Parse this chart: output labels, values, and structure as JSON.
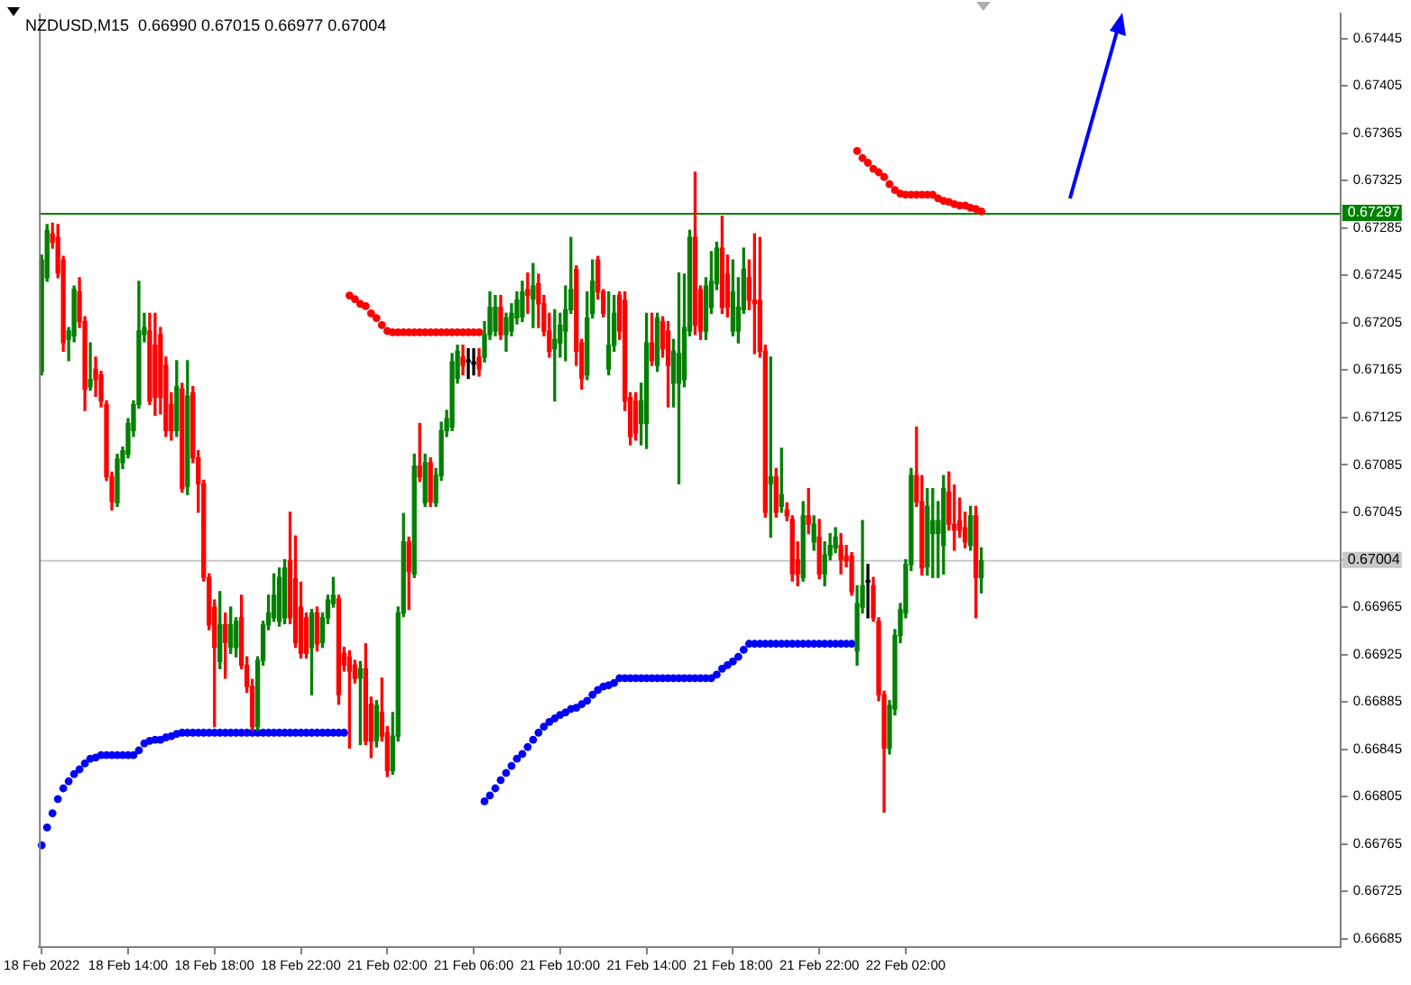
{
  "chart_data": {
    "type": "candlestick",
    "title": "NZDUSD,M15  0.66990 0.67015 0.66977 0.67004",
    "categories": [
      "18 Feb 2022",
      null,
      null,
      null,
      null,
      null,
      null,
      null,
      null,
      null,
      null,
      null,
      null,
      null,
      null,
      null,
      "18 Feb 14:00",
      null,
      null,
      null,
      null,
      null,
      null,
      null,
      null,
      null,
      null,
      null,
      null,
      null,
      null,
      null,
      "18 Feb 18:00",
      null,
      null,
      null,
      null,
      null,
      null,
      null,
      null,
      null,
      null,
      null,
      null,
      null,
      null,
      null,
      "18 Feb 22:00",
      null,
      null,
      null,
      null,
      null,
      null,
      null,
      null,
      null,
      null,
      null,
      null,
      null,
      null,
      null,
      "21 Feb 02:00",
      null,
      null,
      null,
      null,
      null,
      null,
      null,
      null,
      null,
      null,
      null,
      null,
      null,
      null,
      null,
      "21 Feb 06:00",
      null,
      null,
      null,
      null,
      null,
      null,
      null,
      null,
      null,
      null,
      null,
      null,
      null,
      null,
      null,
      "21 Feb 10:00",
      null,
      null,
      null,
      null,
      null,
      null,
      null,
      null,
      null,
      null,
      null,
      null,
      null,
      null,
      null,
      "21 Feb 14:00",
      null,
      null,
      null,
      null,
      null,
      null,
      null,
      null,
      null,
      null,
      null,
      null,
      null,
      null,
      null,
      "21 Feb 18:00",
      null,
      null,
      null,
      null,
      null,
      null,
      null,
      null,
      null,
      null,
      null,
      null,
      null,
      null,
      null,
      "21 Feb 22:00",
      null,
      null,
      null,
      null,
      null,
      null,
      null,
      null,
      null,
      null,
      null,
      null,
      null,
      null,
      null,
      "22 Feb 02:00",
      null,
      null,
      null,
      null,
      null,
      null,
      null,
      null,
      null,
      null,
      null,
      null,
      null,
      null,
      null,
      null,
      null,
      null,
      null,
      null,
      null,
      null,
      null,
      null,
      null,
      null,
      null,
      null,
      null,
      null,
      null,
      null,
      null,
      null,
      null,
      null,
      null,
      null,
      null,
      null,
      null,
      null,
      null,
      null,
      null,
      null,
      null,
      null,
      null,
      null,
      null,
      null,
      null,
      null,
      null,
      null,
      null,
      null,
      null,
      null,
      null,
      null,
      null,
      null,
      null,
      null,
      null,
      null,
      null,
      null,
      null,
      null,
      null,
      null,
      null,
      null,
      null,
      null,
      null,
      null
    ],
    "ylim": [
      0.66678,
      0.67466
    ],
    "yticks": [
      0.66685,
      0.66725,
      0.66765,
      0.66805,
      0.66845,
      0.66885,
      0.66925,
      0.66965,
      {
        "value": 0.67005,
        "label": null
      },
      0.67045,
      0.67085,
      0.67125,
      0.67165,
      0.67205,
      0.67245,
      0.67285,
      0.67325,
      0.67365,
      0.67405,
      0.67445
    ],
    "ohlc": [
      [
        0.67164,
        0.67262,
        0.67161,
        0.67258
      ],
      [
        0.67243,
        0.67288,
        0.6724,
        0.67283
      ],
      [
        0.6728,
        0.67289,
        0.67268,
        0.67273
      ],
      [
        0.67277,
        0.67288,
        0.67243,
        0.67247
      ],
      [
        0.67258,
        0.67261,
        0.67181,
        0.67188
      ],
      [
        0.67191,
        0.67201,
        0.67173,
        0.67198
      ],
      [
        0.67194,
        0.67236,
        0.67189,
        0.67233
      ],
      [
        0.67231,
        0.67243,
        0.67201,
        0.67206
      ],
      [
        0.67206,
        0.6721,
        0.67131,
        0.67149
      ],
      [
        0.67151,
        0.67188,
        0.67148,
        0.67157
      ],
      [
        0.67166,
        0.67176,
        0.67143,
        0.67157
      ],
      [
        0.67161,
        0.67164,
        0.67134,
        0.67139
      ],
      [
        0.67136,
        0.67139,
        0.67072,
        0.67075
      ],
      [
        0.67075,
        0.67079,
        0.67047,
        0.67054
      ],
      [
        0.67053,
        0.67094,
        0.6705,
        0.6709
      ],
      [
        0.67087,
        0.671,
        0.67082,
        0.67097
      ],
      [
        0.67094,
        0.67124,
        0.67091,
        0.6712
      ],
      [
        0.67114,
        0.67139,
        0.67109,
        0.67136
      ],
      [
        0.67136,
        0.6724,
        0.67133,
        0.67198
      ],
      [
        0.67195,
        0.67213,
        0.67189,
        0.67201
      ],
      [
        0.67198,
        0.67213,
        0.67136,
        0.67139
      ],
      [
        0.67186,
        0.67213,
        0.67127,
        0.67142
      ],
      [
        0.67195,
        0.67201,
        0.67128,
        0.67142
      ],
      [
        0.67169,
        0.67176,
        0.67109,
        0.67114
      ],
      [
        0.67136,
        0.67146,
        0.67106,
        0.67114
      ],
      [
        0.67114,
        0.67173,
        0.67109,
        0.67151
      ],
      [
        0.67149,
        0.67154,
        0.67062,
        0.67065
      ],
      [
        0.67067,
        0.67173,
        0.6706,
        0.67143
      ],
      [
        0.67146,
        0.67151,
        0.67087,
        0.67091
      ],
      [
        0.67091,
        0.67097,
        0.67045,
        0.67069
      ],
      [
        0.67069,
        0.67072,
        0.66987,
        0.6699
      ],
      [
        0.6699,
        0.66993,
        0.66946,
        0.6695
      ],
      [
        0.66965,
        0.66971,
        0.66864,
        0.66931
      ],
      [
        0.66919,
        0.66978,
        0.66913,
        0.6695
      ],
      [
        0.6695,
        0.6696,
        0.66905,
        0.66935
      ],
      [
        0.66931,
        0.66965,
        0.66926,
        0.6695
      ],
      [
        0.66931,
        0.66956,
        0.66923,
        0.66953
      ],
      [
        0.66956,
        0.66975,
        0.66913,
        0.66916
      ],
      [
        0.66916,
        0.66923,
        0.66893,
        0.66898
      ],
      [
        0.66898,
        0.66904,
        0.66861,
        0.66864
      ],
      [
        0.66864,
        0.66923,
        0.66861,
        0.6692
      ],
      [
        0.6692,
        0.66953,
        0.66916,
        0.6695
      ],
      [
        0.6695,
        0.66975,
        0.66946,
        0.6696
      ],
      [
        0.66956,
        0.66993,
        0.66953,
        0.66975
      ],
      [
        0.66953,
        0.66998,
        0.66949,
        0.6699
      ],
      [
        0.66956,
        0.67005,
        0.66951,
        0.66998
      ],
      [
        0.67004,
        0.67045,
        0.66951,
        0.66956
      ],
      [
        0.66989,
        0.67025,
        0.66931,
        0.66935
      ],
      [
        0.66965,
        0.66986,
        0.66922,
        0.66926
      ],
      [
        0.66956,
        0.6696,
        0.66922,
        0.66926
      ],
      [
        0.66931,
        0.66963,
        0.66891,
        0.6696
      ],
      [
        0.6696,
        0.66965,
        0.66928,
        0.66934
      ],
      [
        0.66935,
        0.6696,
        0.66931,
        0.66956
      ],
      [
        0.66956,
        0.66975,
        0.66951,
        0.66971
      ],
      [
        0.66968,
        0.6699,
        0.66965,
        0.66975
      ],
      [
        0.66972,
        0.66975,
        0.66883,
        0.66891
      ],
      [
        0.66926,
        0.66931,
        0.66911,
        0.66916
      ],
      [
        0.66923,
        0.66928,
        0.66846,
        0.66911
      ],
      [
        0.66916,
        0.6692,
        0.66901,
        0.66905
      ],
      [
        0.66905,
        0.66919,
        0.66849,
        0.66913
      ],
      [
        0.66913,
        0.66934,
        0.66849,
        0.66852
      ],
      [
        0.66883,
        0.66889,
        0.66838,
        0.66852
      ],
      [
        0.66852,
        0.66886,
        0.66847,
        0.66882
      ],
      [
        0.66876,
        0.66905,
        0.66852,
        0.66856
      ],
      [
        0.66859,
        0.66864,
        0.66822,
        0.66827
      ],
      [
        0.66827,
        0.66876,
        0.66824,
        0.66856
      ],
      [
        0.66856,
        0.66965,
        0.66852,
        0.6696
      ],
      [
        0.6696,
        0.67044,
        0.66957,
        0.6702
      ],
      [
        0.6702,
        0.67024,
        0.66963,
        0.66995
      ],
      [
        0.66993,
        0.67094,
        0.6699,
        0.67084
      ],
      [
        0.67084,
        0.6712,
        0.67071,
        0.67075
      ],
      [
        0.67053,
        0.67094,
        0.6705,
        0.67087
      ],
      [
        0.67087,
        0.67091,
        0.6705,
        0.67054
      ],
      [
        0.67053,
        0.67082,
        0.6705,
        0.67076
      ],
      [
        0.67076,
        0.67121,
        0.67072,
        0.67114
      ],
      [
        0.67114,
        0.67131,
        0.67109,
        0.67124
      ],
      [
        0.67117,
        0.67179,
        0.67114,
        0.67172
      ],
      [
        0.67158,
        0.67186,
        0.67154,
        0.67181
      ],
      [
        0.67176,
        0.67186,
        0.67161,
        0.67169
      ],
      [
        0.67172,
        0.67183,
        0.67158,
        0.67172
      ],
      [
        0.67172,
        0.67183,
        0.67161,
        0.6717
      ],
      [
        0.67176,
        0.67183,
        0.6716,
        0.67166
      ],
      [
        0.67176,
        0.67206,
        0.67172,
        0.67195
      ],
      [
        0.67195,
        0.67231,
        0.67191,
        0.67218
      ],
      [
        0.67198,
        0.67228,
        0.67194,
        0.67218
      ],
      [
        0.67218,
        0.67228,
        0.67191,
        0.67195
      ],
      [
        0.67195,
        0.67213,
        0.67181,
        0.67209
      ],
      [
        0.67198,
        0.67221,
        0.67194,
        0.67213
      ],
      [
        0.67209,
        0.67231,
        0.67204,
        0.67224
      ],
      [
        0.6721,
        0.6724,
        0.67206,
        0.67231
      ],
      [
        0.67233,
        0.67247,
        0.67213,
        0.67228
      ],
      [
        0.67225,
        0.67255,
        0.67201,
        0.67236
      ],
      [
        0.67238,
        0.67246,
        0.67201,
        0.67221
      ],
      [
        0.67221,
        0.67228,
        0.67194,
        0.67198
      ],
      [
        0.67198,
        0.67213,
        0.67176,
        0.67181
      ],
      [
        0.67183,
        0.67216,
        0.67139,
        0.67191
      ],
      [
        0.67188,
        0.67213,
        0.67176,
        0.67203
      ],
      [
        0.67198,
        0.67236,
        0.67173,
        0.67216
      ],
      [
        0.67216,
        0.67277,
        0.67213,
        0.67233
      ],
      [
        0.6725,
        0.67253,
        0.67169,
        0.67181
      ],
      [
        0.67188,
        0.67191,
        0.67149,
        0.67158
      ],
      [
        0.67161,
        0.67231,
        0.67157,
        0.67209
      ],
      [
        0.67213,
        0.67258,
        0.67209,
        0.6724
      ],
      [
        0.67258,
        0.67261,
        0.67225,
        0.67231
      ],
      [
        0.67231,
        0.67233,
        0.6721,
        0.67213
      ],
      [
        0.67166,
        0.67231,
        0.67161,
        0.67186
      ],
      [
        0.67186,
        0.67228,
        0.67181,
        0.67213
      ],
      [
        0.67228,
        0.67231,
        0.67191,
        0.67198
      ],
      [
        0.67224,
        0.67231,
        0.67131,
        0.67139
      ],
      [
        0.67142,
        0.67146,
        0.67102,
        0.67109
      ],
      [
        0.67139,
        0.67146,
        0.67106,
        0.67112
      ],
      [
        0.6712,
        0.67154,
        0.67102,
        0.67139
      ],
      [
        0.6712,
        0.67213,
        0.67099,
        0.67188
      ],
      [
        0.67188,
        0.67213,
        0.67169,
        0.67173
      ],
      [
        0.67169,
        0.67213,
        0.67164,
        0.67209
      ],
      [
        0.67206,
        0.6721,
        0.67176,
        0.67183
      ],
      [
        0.67198,
        0.67206,
        0.67134,
        0.67169
      ],
      [
        0.67154,
        0.67191,
        0.67134,
        0.67181
      ],
      [
        0.67154,
        0.67247,
        0.67069,
        0.67179
      ],
      [
        0.67157,
        0.67246,
        0.67151,
        0.67201
      ],
      [
        0.67198,
        0.67283,
        0.67194,
        0.67277
      ],
      [
        0.67277,
        0.67332,
        0.67195,
        0.67203
      ],
      [
        0.67233,
        0.67236,
        0.67191,
        0.67198
      ],
      [
        0.67198,
        0.67243,
        0.67191,
        0.67236
      ],
      [
        0.67218,
        0.67265,
        0.67213,
        0.6724
      ],
      [
        0.67238,
        0.67273,
        0.67233,
        0.67268
      ],
      [
        0.67268,
        0.67295,
        0.67213,
        0.67218
      ],
      [
        0.67246,
        0.67262,
        0.6721,
        0.67218
      ],
      [
        0.67198,
        0.67258,
        0.67194,
        0.67231
      ],
      [
        0.67198,
        0.67243,
        0.67188,
        0.67218
      ],
      [
        0.67216,
        0.67268,
        0.67213,
        0.6725
      ],
      [
        0.67243,
        0.67258,
        0.67216,
        0.67224
      ],
      [
        0.67224,
        0.6728,
        0.67179,
        0.67221
      ],
      [
        0.67224,
        0.67277,
        0.67176,
        0.67181
      ],
      [
        0.67181,
        0.67186,
        0.67041,
        0.67045
      ],
      [
        0.67069,
        0.67176,
        0.67024,
        0.67075
      ],
      [
        0.67075,
        0.67082,
        0.67041,
        0.67045
      ],
      [
        0.6705,
        0.67099,
        0.67045,
        0.6706
      ],
      [
        0.67047,
        0.67053,
        0.67038,
        0.67042
      ],
      [
        0.67039,
        0.67042,
        0.66987,
        0.66993
      ],
      [
        0.67005,
        0.6702,
        0.66983,
        0.66993
      ],
      [
        0.6699,
        0.67054,
        0.66987,
        0.67042
      ],
      [
        0.67042,
        0.67065,
        0.67027,
        0.67035
      ],
      [
        0.6702,
        0.67042,
        0.67013,
        0.67035
      ],
      [
        0.67024,
        0.67039,
        0.66989,
        0.66993
      ],
      [
        0.66993,
        0.6702,
        0.66983,
        0.67009
      ],
      [
        0.67009,
        0.67027,
        0.67005,
        0.67017
      ],
      [
        0.67015,
        0.67032,
        0.67011,
        0.67024
      ],
      [
        0.67017,
        0.67027,
        0.66993,
        0.67005
      ],
      [
        0.67008,
        0.67017,
        0.66999,
        0.67004
      ],
      [
        0.67008,
        0.67011,
        0.66975,
        0.66978
      ],
      [
        0.66928,
        0.66983,
        0.66916,
        0.66968
      ],
      [
        0.66965,
        0.67038,
        0.6696,
        0.66983
      ],
      [
        0.66986,
        0.67001,
        0.66956,
        0.66986
      ],
      [
        0.66983,
        0.6699,
        0.66953,
        0.66956
      ],
      [
        0.66953,
        0.66956,
        0.66886,
        0.66891
      ],
      [
        0.66891,
        0.66894,
        0.66792,
        0.66846
      ],
      [
        0.66846,
        0.66886,
        0.66841,
        0.66882
      ],
      [
        0.66879,
        0.66946,
        0.66874,
        0.66941
      ],
      [
        0.66941,
        0.66968,
        0.66935,
        0.66963
      ],
      [
        0.6696,
        0.67005,
        0.66956,
        0.67001
      ],
      [
        0.67001,
        0.67082,
        0.66996,
        0.67076
      ],
      [
        0.67076,
        0.67117,
        0.6705,
        0.67054
      ],
      [
        0.67054,
        0.67076,
        0.66992,
        0.66998
      ],
      [
        0.66999,
        0.67065,
        0.66992,
        0.6705
      ],
      [
        0.67027,
        0.67065,
        0.6699,
        0.67038
      ],
      [
        0.67027,
        0.67054,
        0.6699,
        0.67038
      ],
      [
        0.67017,
        0.67076,
        0.66993,
        0.67065
      ],
      [
        0.67062,
        0.67079,
        0.6703,
        0.67035
      ],
      [
        0.67035,
        0.67068,
        0.67013,
        0.6703
      ],
      [
        0.67038,
        0.67057,
        0.67024,
        0.6703
      ],
      [
        0.67032,
        0.67045,
        0.67015,
        0.6702
      ],
      [
        0.67017,
        0.6705,
        0.67013,
        0.67042
      ],
      [
        0.67042,
        0.6705,
        0.66956,
        0.6699
      ],
      [
        0.6699,
        0.67015,
        0.66977,
        0.67004
      ],
      null,
      null,
      null,
      null,
      null,
      null,
      null,
      null,
      null,
      null,
      null,
      null,
      null,
      null,
      null,
      null,
      null,
      null,
      null,
      null,
      null,
      null,
      null,
      null,
      null,
      null,
      null,
      null,
      null,
      null,
      null,
      null,
      null,
      null,
      null,
      null,
      null,
      null,
      null,
      null,
      null,
      null,
      null,
      null,
      null,
      null,
      null,
      null,
      null,
      null,
      null,
      null,
      null,
      null,
      null,
      null,
      null,
      null,
      null,
      null,
      null,
      null,
      null,
      null,
      null,
      null
    ],
    "colors": [
      "#008000",
      "#008000",
      "#ff0000",
      "#ff0000",
      "#ff0000",
      "#008000",
      "#008000",
      "#ff0000",
      "#ff0000",
      "#008000",
      "#ff0000",
      "#ff0000",
      "#ff0000",
      "#ff0000",
      "#008000",
      "#008000",
      "#008000",
      "#008000",
      "#008000",
      "#008000",
      "#ff0000",
      "#ff0000",
      "#ff0000",
      "#ff0000",
      "#ff0000",
      "#008000",
      "#ff0000",
      "#008000",
      "#ff0000",
      "#ff0000",
      "#ff0000",
      "#ff0000",
      "#ff0000",
      "#008000",
      "#ff0000",
      "#008000",
      "#008000",
      "#ff0000",
      "#ff0000",
      "#ff0000",
      "#008000",
      "#008000",
      "#008000",
      "#008000",
      "#008000",
      "#008000",
      "#ff0000",
      "#ff0000",
      "#ff0000",
      "#ff0000",
      "#008000",
      "#ff0000",
      "#008000",
      "#008000",
      "#008000",
      "#ff0000",
      "#ff0000",
      "#ff0000",
      "#ff0000",
      "#008000",
      "#ff0000",
      "#ff0000",
      "#008000",
      "#ff0000",
      "#ff0000",
      "#008000",
      "#008000",
      "#008000",
      "#ff0000",
      "#008000",
      "#ff0000",
      "#008000",
      "#ff0000",
      "#008000",
      "#008000",
      "#008000",
      "#008000",
      "#008000",
      "#ff0000",
      "#000000",
      "#000000",
      "#ff0000",
      "#008000",
      "#008000",
      "#008000",
      "#ff0000",
      "#008000",
      "#008000",
      "#008000",
      "#008000",
      "#ff0000",
      "#008000",
      "#ff0000",
      "#ff0000",
      "#ff0000",
      "#008000",
      "#008000",
      "#008000",
      "#008000",
      "#ff0000",
      "#ff0000",
      "#008000",
      "#008000",
      "#ff0000",
      "#ff0000",
      "#008000",
      "#008000",
      "#ff0000",
      "#ff0000",
      "#ff0000",
      "#ff0000",
      "#008000",
      "#008000",
      "#ff0000",
      "#008000",
      "#ff0000",
      "#ff0000",
      "#008000",
      "#008000",
      "#008000",
      "#008000",
      "#ff0000",
      "#ff0000",
      "#008000",
      "#008000",
      "#008000",
      "#ff0000",
      "#ff0000",
      "#008000",
      "#008000",
      "#008000",
      "#ff0000",
      "#ff0000",
      "#ff0000",
      "#ff0000",
      "#008000",
      "#ff0000",
      "#008000",
      "#ff0000",
      "#ff0000",
      "#ff0000",
      "#008000",
      "#ff0000",
      "#008000",
      "#ff0000",
      "#008000",
      "#008000",
      "#008000",
      "#ff0000",
      "#ff0000",
      "#ff0000",
      "#008000",
      "#008000",
      "#000000",
      "#ff0000",
      "#ff0000",
      "#ff0000",
      "#008000",
      "#008000",
      "#008000",
      "#008000",
      "#008000",
      "#ff0000",
      "#ff0000",
      "#008000",
      "#008000",
      "#008000",
      "#008000",
      "#ff0000",
      "#ff0000",
      "#ff0000",
      "#ff0000",
      "#008000",
      "#ff0000",
      "#008000",
      null,
      null,
      null,
      null,
      null,
      null,
      null,
      null,
      null,
      null,
      null,
      null,
      null,
      null,
      null,
      null,
      null,
      null,
      null,
      null,
      null,
      null,
      null,
      null,
      null,
      null,
      null,
      null,
      null,
      null,
      null,
      null,
      null,
      null,
      null,
      null,
      null,
      null,
      null,
      null,
      null,
      null,
      null,
      null,
      null,
      null,
      null,
      null,
      null,
      null,
      null,
      null,
      null,
      null,
      null,
      null,
      null,
      null,
      null,
      null,
      null,
      null,
      null,
      null,
      null,
      null
    ],
    "series": [
      {
        "type": "scatter",
        "color": "#ff0000",
        "values": [
          null,
          null,
          null,
          null,
          null,
          null,
          null,
          null,
          null,
          null,
          null,
          null,
          null,
          null,
          null,
          null,
          null,
          null,
          null,
          null,
          null,
          null,
          null,
          null,
          null,
          null,
          null,
          null,
          null,
          null,
          null,
          null,
          null,
          null,
          null,
          null,
          null,
          null,
          null,
          null,
          null,
          null,
          null,
          null,
          null,
          null,
          null,
          null,
          null,
          null,
          null,
          null,
          null,
          null,
          null,
          null,
          null,
          0.67228,
          0.67225,
          0.67221,
          0.67219,
          0.67213,
          0.67209,
          0.67203,
          0.67198,
          0.67197,
          0.67197,
          0.67197,
          0.67197,
          0.67197,
          0.67197,
          0.67197,
          0.67197,
          0.67197,
          0.67197,
          0.67197,
          0.67197,
          0.67197,
          0.67197,
          0.67197,
          0.67197,
          0.67197,
          null,
          null,
          null,
          null,
          null,
          null,
          null,
          null,
          null,
          null,
          null,
          null,
          null,
          null,
          null,
          null,
          null,
          null,
          null,
          null,
          null,
          null,
          null,
          null,
          null,
          null,
          null,
          null,
          null,
          null,
          null,
          null,
          null,
          null,
          null,
          null,
          null,
          null,
          null,
          null,
          null,
          null,
          null,
          null,
          null,
          null,
          null,
          null,
          null,
          null,
          null,
          null,
          null,
          null,
          null,
          null,
          null,
          null,
          null,
          null,
          null,
          null,
          null,
          null,
          null,
          null,
          null,
          null,
          null,
          0.6735,
          0.67344,
          0.6734,
          0.67335,
          0.67332,
          0.67328,
          0.67322,
          0.67317,
          0.67314,
          0.67313,
          0.67313,
          0.67313,
          0.67313,
          0.67313,
          0.67313,
          0.6731,
          0.67308,
          0.67307,
          0.67305,
          0.67304,
          0.67304,
          0.67302,
          0.67301,
          0.67299,
          null,
          null,
          null,
          null,
          null,
          null,
          null,
          null,
          null,
          null,
          null,
          null,
          null,
          null,
          null,
          null,
          null,
          null,
          null,
          null,
          null,
          null,
          null,
          null,
          null,
          null,
          null,
          null,
          null,
          null,
          null,
          null,
          null,
          null,
          null,
          null,
          null,
          null,
          null,
          null,
          null,
          null,
          null,
          null,
          null,
          null,
          null,
          null,
          null,
          null,
          null,
          null,
          null,
          null,
          null,
          null,
          null,
          null,
          null,
          null,
          null,
          null,
          null,
          null,
          null,
          null
        ]
      },
      {
        "type": "scatter",
        "color": "#0000ff",
        "values": [
          0.66764,
          0.66779,
          0.66791,
          0.66803,
          0.66812,
          0.66818,
          0.66824,
          0.66828,
          0.66833,
          0.66837,
          0.66838,
          0.6684,
          0.6684,
          0.6684,
          0.6684,
          0.6684,
          0.6684,
          0.6684,
          0.66844,
          0.6685,
          0.66852,
          0.66853,
          0.66853,
          0.66855,
          0.66856,
          0.66858,
          0.66859,
          0.66859,
          0.66859,
          0.66859,
          0.66859,
          0.66859,
          0.66859,
          0.66859,
          0.66859,
          0.66859,
          0.66859,
          0.66859,
          0.66859,
          0.66859,
          0.66859,
          0.66859,
          0.66859,
          0.66859,
          0.66859,
          0.66859,
          0.66859,
          0.66859,
          0.66859,
          0.66859,
          0.66859,
          0.66859,
          0.66859,
          0.66859,
          0.66859,
          0.66859,
          0.66859,
          null,
          null,
          null,
          null,
          null,
          null,
          null,
          null,
          null,
          null,
          null,
          null,
          null,
          null,
          null,
          null,
          null,
          null,
          null,
          null,
          null,
          null,
          null,
          null,
          null,
          0.66801,
          0.66806,
          0.66812,
          0.66819,
          0.66825,
          0.66831,
          0.66837,
          0.66841,
          0.66847,
          0.66853,
          0.66859,
          0.66864,
          0.66868,
          0.66871,
          0.66874,
          0.66876,
          0.66879,
          0.6688,
          0.66883,
          0.66886,
          0.66891,
          0.66895,
          0.66898,
          0.66899,
          0.66901,
          0.66905,
          0.66905,
          0.66905,
          0.66905,
          0.66905,
          0.66905,
          0.66905,
          0.66905,
          0.66905,
          0.66905,
          0.66905,
          0.66905,
          0.66905,
          0.66905,
          0.66905,
          0.66905,
          0.66905,
          0.66905,
          0.66908,
          0.66913,
          0.66916,
          0.66919,
          0.66923,
          0.66929,
          0.66934,
          0.66934,
          0.66934,
          0.66934,
          0.66934,
          0.66934,
          0.66934,
          0.66934,
          0.66934,
          0.66934,
          0.66934,
          0.66934,
          0.66934,
          0.66934,
          0.66934,
          0.66934,
          0.66934,
          0.66934,
          0.66934,
          0.66934,
          null,
          null,
          null,
          null,
          null,
          null,
          null,
          null,
          null,
          null,
          null,
          null,
          null,
          null,
          null,
          null,
          null,
          null,
          null,
          null,
          null,
          null,
          null,
          null,
          null,
          null,
          null,
          null,
          null,
          null,
          null,
          null,
          null,
          null,
          null,
          null,
          null,
          null,
          null,
          null,
          null,
          null,
          null,
          null,
          null,
          null,
          null,
          null,
          null,
          null,
          null,
          null,
          null,
          null,
          null,
          null,
          null,
          null,
          null,
          null,
          null,
          null,
          null,
          null,
          null,
          null,
          null,
          null,
          null,
          null,
          null,
          null,
          null,
          null,
          null,
          null,
          null,
          null,
          null,
          null,
          null,
          null,
          null,
          null,
          null,
          null,
          null,
          null,
          null,
          null
        ]
      }
    ],
    "ref_lines": [
      {
        "axis": "y",
        "value": 0.67297,
        "label": "0.67297",
        "color": "#008000"
      },
      {
        "axis": "y",
        "value": 0.67004,
        "label": "0.67004",
        "color": "#c8c8c8"
      }
    ],
    "marker": "circle",
    "grid": false,
    "legend": false
  }
}
